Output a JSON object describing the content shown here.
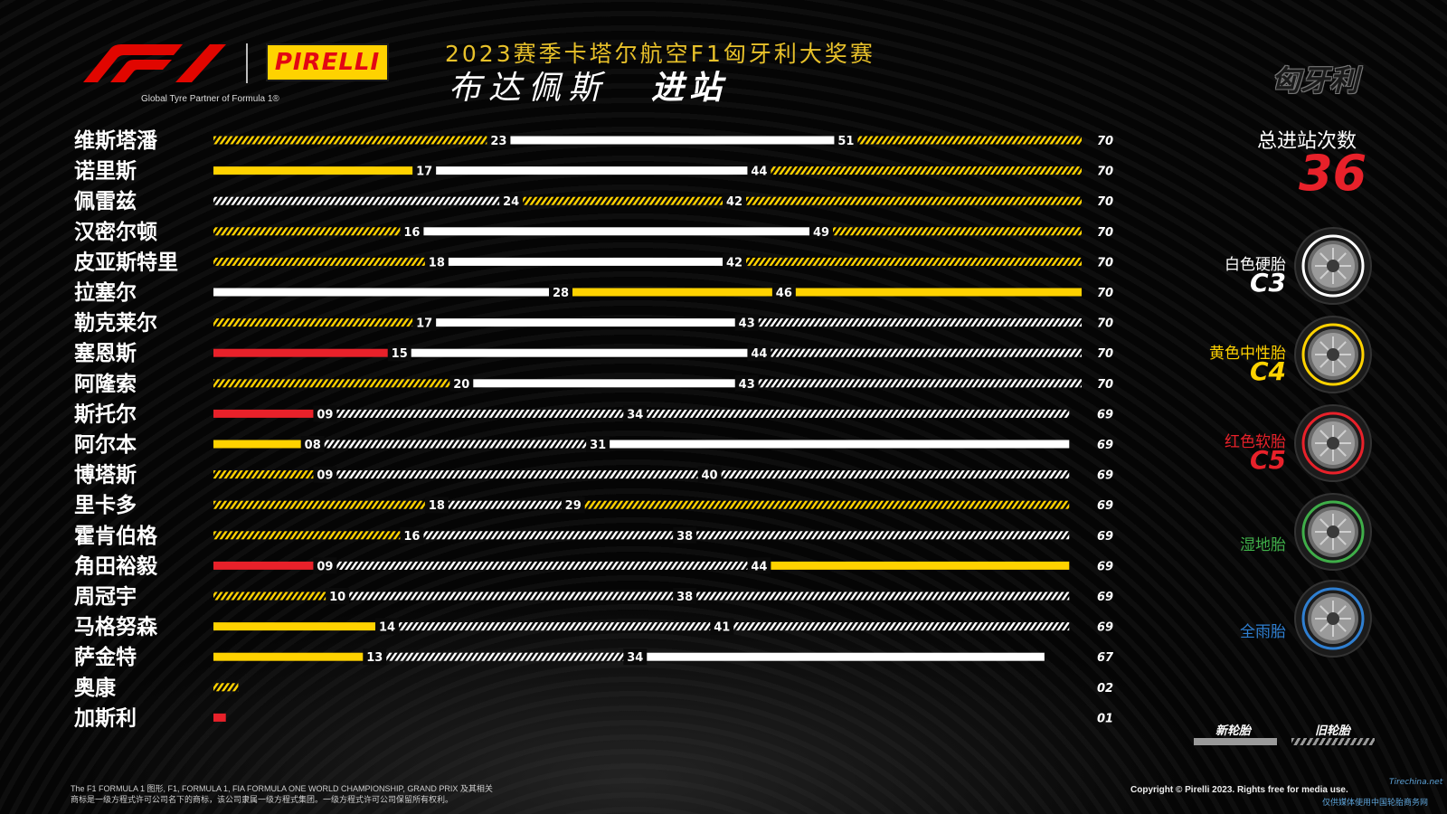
{
  "header": {
    "tagline": "Global Tyre Partner of Formula 1®",
    "brand": "PIRELLI",
    "season_title": "2023赛季卡塔尔航空F1匈牙利大奖赛",
    "city": "布达佩斯",
    "subtitle": "进站",
    "country": "匈牙利"
  },
  "total": {
    "label": "总进站次数",
    "value": "36"
  },
  "legend": {
    "tyres": [
      {
        "label": "白色硬胎",
        "code": "C3",
        "color": "#ffffff",
        "icon": "hard-tyre-icon"
      },
      {
        "label": "黄色中性胎",
        "code": "C4",
        "color": "#ffd200",
        "icon": "medium-tyre-icon"
      },
      {
        "label": "红色软胎",
        "code": "C5",
        "color": "#e8212a",
        "icon": "soft-tyre-icon"
      },
      {
        "label": "湿地胎",
        "code": "",
        "color": "#3fae49",
        "icon": "intermediate-tyre-icon"
      },
      {
        "label": "全雨胎",
        "code": "",
        "color": "#2f7fd1",
        "icon": "wet-tyre-icon"
      }
    ],
    "new_label": "新轮胎",
    "used_label": "旧轮胎"
  },
  "footer": {
    "trademark_line1": "The F1 FORMULA 1 图形, F1, FORMULA 1, FIA FORMULA ONE WORLD CHAMPIONSHIP, GRAND PRIX 及其相关",
    "trademark_line2": "商标是一级方程式许可公司名下的商标，该公司隶属一级方程式集团。一级方程式许可公司保留所有权利。",
    "copyright": "Copyright © Pirelli 2023. Rights free for media use.",
    "watermark": "Tirechina.net",
    "watermark_sub": "仅供媒体使用中国轮胎商务网"
  },
  "colors": {
    "hard": "#ffffff",
    "medium": "#ffd200",
    "soft": "#e8212a",
    "accent_red": "#e8212a",
    "title_gold": "#e8c12a"
  },
  "chart_data": {
    "type": "bar",
    "orientation": "horizontal-stacked",
    "title": "进站",
    "xlim": [
      0,
      70
    ],
    "xlabel": "",
    "ylabel": "",
    "drivers": [
      {
        "name": "维斯塔潘",
        "laps": "70",
        "stints": [
          {
            "compound": "medium",
            "new": false,
            "end": 23,
            "label": "23"
          },
          {
            "compound": "hard",
            "new": true,
            "end": 51,
            "label": "51"
          },
          {
            "compound": "medium",
            "new": false,
            "end": 70,
            "label": ""
          }
        ]
      },
      {
        "name": "诺里斯",
        "laps": "70",
        "stints": [
          {
            "compound": "medium",
            "new": true,
            "end": 17,
            "label": "17"
          },
          {
            "compound": "hard",
            "new": true,
            "end": 44,
            "label": "44"
          },
          {
            "compound": "medium",
            "new": false,
            "end": 70,
            "label": ""
          }
        ]
      },
      {
        "name": "佩雷兹",
        "laps": "70",
        "stints": [
          {
            "compound": "hard",
            "new": false,
            "end": 24,
            "label": "24"
          },
          {
            "compound": "medium",
            "new": false,
            "end": 42,
            "label": "42"
          },
          {
            "compound": "medium",
            "new": false,
            "end": 70,
            "label": ""
          }
        ]
      },
      {
        "name": "汉密尔顿",
        "laps": "70",
        "stints": [
          {
            "compound": "medium",
            "new": false,
            "end": 16,
            "label": "16"
          },
          {
            "compound": "hard",
            "new": true,
            "end": 49,
            "label": "49"
          },
          {
            "compound": "medium",
            "new": false,
            "end": 70,
            "label": ""
          }
        ]
      },
      {
        "name": "皮亚斯特里",
        "laps": "70",
        "stints": [
          {
            "compound": "medium",
            "new": false,
            "end": 18,
            "label": "18"
          },
          {
            "compound": "hard",
            "new": true,
            "end": 42,
            "label": "42"
          },
          {
            "compound": "medium",
            "new": false,
            "end": 70,
            "label": ""
          }
        ]
      },
      {
        "name": "拉塞尔",
        "laps": "70",
        "stints": [
          {
            "compound": "hard",
            "new": true,
            "end": 28,
            "label": "28"
          },
          {
            "compound": "medium",
            "new": true,
            "end": 46,
            "label": "46"
          },
          {
            "compound": "medium",
            "new": true,
            "end": 70,
            "label": ""
          }
        ]
      },
      {
        "name": "勒克莱尔",
        "laps": "70",
        "stints": [
          {
            "compound": "medium",
            "new": false,
            "end": 17,
            "label": "17"
          },
          {
            "compound": "hard",
            "new": true,
            "end": 43,
            "label": "43"
          },
          {
            "compound": "hard",
            "new": false,
            "end": 70,
            "label": ""
          }
        ]
      },
      {
        "name": "塞恩斯",
        "laps": "70",
        "stints": [
          {
            "compound": "soft",
            "new": true,
            "end": 15,
            "label": "15"
          },
          {
            "compound": "hard",
            "new": true,
            "end": 44,
            "label": "44"
          },
          {
            "compound": "hard",
            "new": false,
            "end": 70,
            "label": ""
          }
        ]
      },
      {
        "name": "阿隆索",
        "laps": "70",
        "stints": [
          {
            "compound": "medium",
            "new": false,
            "end": 20,
            "label": "20"
          },
          {
            "compound": "hard",
            "new": true,
            "end": 43,
            "label": "43"
          },
          {
            "compound": "hard",
            "new": false,
            "end": 70,
            "label": ""
          }
        ]
      },
      {
        "name": "斯托尔",
        "laps": "69",
        "stints": [
          {
            "compound": "soft",
            "new": true,
            "end": 9,
            "label": "09"
          },
          {
            "compound": "hard",
            "new": false,
            "end": 34,
            "label": "34"
          },
          {
            "compound": "hard",
            "new": false,
            "end": 69,
            "label": ""
          }
        ]
      },
      {
        "name": "阿尔本",
        "laps": "69",
        "stints": [
          {
            "compound": "medium",
            "new": true,
            "end": 8,
            "label": "08"
          },
          {
            "compound": "hard",
            "new": false,
            "end": 31,
            "label": "31"
          },
          {
            "compound": "hard",
            "new": true,
            "end": 69,
            "label": ""
          }
        ]
      },
      {
        "name": "博塔斯",
        "laps": "69",
        "stints": [
          {
            "compound": "medium",
            "new": false,
            "end": 9,
            "label": "09"
          },
          {
            "compound": "hard",
            "new": false,
            "end": 40,
            "label": "40"
          },
          {
            "compound": "hard",
            "new": false,
            "end": 69,
            "label": ""
          }
        ]
      },
      {
        "name": "里卡多",
        "laps": "69",
        "stints": [
          {
            "compound": "medium",
            "new": false,
            "end": 18,
            "label": "18"
          },
          {
            "compound": "hard",
            "new": false,
            "end": 29,
            "label": "29"
          },
          {
            "compound": "medium",
            "new": false,
            "end": 69,
            "label": ""
          }
        ]
      },
      {
        "name": "霍肯伯格",
        "laps": "69",
        "stints": [
          {
            "compound": "medium",
            "new": false,
            "end": 16,
            "label": "16"
          },
          {
            "compound": "hard",
            "new": false,
            "end": 38,
            "label": "38"
          },
          {
            "compound": "hard",
            "new": false,
            "end": 69,
            "label": ""
          }
        ]
      },
      {
        "name": "角田裕毅",
        "laps": "69",
        "stints": [
          {
            "compound": "soft",
            "new": true,
            "end": 9,
            "label": "09"
          },
          {
            "compound": "hard",
            "new": false,
            "end": 44,
            "label": "44"
          },
          {
            "compound": "medium",
            "new": true,
            "end": 69,
            "label": ""
          }
        ]
      },
      {
        "name": "周冠宇",
        "laps": "69",
        "stints": [
          {
            "compound": "medium",
            "new": false,
            "end": 10,
            "label": "10"
          },
          {
            "compound": "hard",
            "new": false,
            "end": 38,
            "label": "38"
          },
          {
            "compound": "hard",
            "new": false,
            "end": 69,
            "label": ""
          }
        ]
      },
      {
        "name": "马格努森",
        "laps": "69",
        "stints": [
          {
            "compound": "medium",
            "new": true,
            "end": 14,
            "label": "14"
          },
          {
            "compound": "hard",
            "new": false,
            "end": 41,
            "label": "41"
          },
          {
            "compound": "hard",
            "new": false,
            "end": 69,
            "label": ""
          }
        ]
      },
      {
        "name": "萨金特",
        "laps": "67",
        "stints": [
          {
            "compound": "medium",
            "new": true,
            "end": 13,
            "label": "13"
          },
          {
            "compound": "hard",
            "new": false,
            "end": 34,
            "label": "34"
          },
          {
            "compound": "hard",
            "new": true,
            "end": 67,
            "label": ""
          }
        ]
      },
      {
        "name": "奥康",
        "laps": "02",
        "stints": [
          {
            "compound": "medium",
            "new": false,
            "end": 2,
            "label": ""
          }
        ]
      },
      {
        "name": "加斯利",
        "laps": "01",
        "stints": [
          {
            "compound": "soft",
            "new": true,
            "end": 1,
            "label": ""
          }
        ]
      }
    ]
  }
}
